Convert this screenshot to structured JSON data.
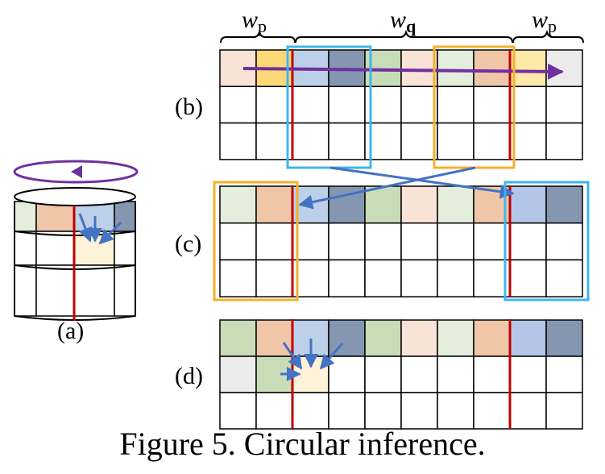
{
  "labels": {
    "wp_left": "w",
    "wp_left_sub": "p",
    "wq": "w",
    "wq_sub": "q",
    "wp_right": "w",
    "wp_right_sub": "p",
    "b": "(b)",
    "c": "(c)",
    "d": "(d)",
    "a": "(a)"
  },
  "caption": "Figure 5. Circular inference.",
  "colors": {
    "peach_light": "#f8e3d6",
    "yellow": "#fcd877",
    "blue_light": "#bdd0ea",
    "slate": "#8496b0",
    "green_light": "#c8dcb8",
    "mint_light": "#e4eedc",
    "salmon": "#f0c6a9",
    "yellow_light": "#fde9a8",
    "grey_light": "#ececec",
    "cream": "#fef3d8",
    "periwinkle": "#b4c6e8",
    "arrow_purple": "#7030a0",
    "arrow_blue": "#4472c4",
    "box_blue": "#41b6ec",
    "box_gold": "#f3b12d",
    "red_line": "#c00000"
  },
  "grids": {
    "b_row0": [
      "peach_light",
      "yellow",
      "blue_light",
      "slate",
      "green_light",
      "peach_light",
      "mint_light",
      "salmon",
      "yellow_light",
      "grey_light"
    ],
    "c_row0": [
      "mint_light",
      "salmon",
      "blue_light",
      "slate",
      "green_light",
      "peach_light",
      "mint_light",
      "salmon",
      "periwinkle",
      "slate"
    ],
    "d_row0": [
      "green_light",
      "salmon",
      "blue_light",
      "slate",
      "green_light",
      "peach_light",
      "mint_light",
      "salmon",
      "periwinkle",
      "slate"
    ],
    "d_row1": [
      "grey_light",
      "green_light",
      "cream",
      "",
      "",
      "",
      "",
      "",
      "",
      ""
    ],
    "a_row0": [
      "mint_light",
      "salmon",
      "blue_light",
      "slate"
    ],
    "a_row1": [
      "",
      "",
      "cream",
      ""
    ]
  }
}
